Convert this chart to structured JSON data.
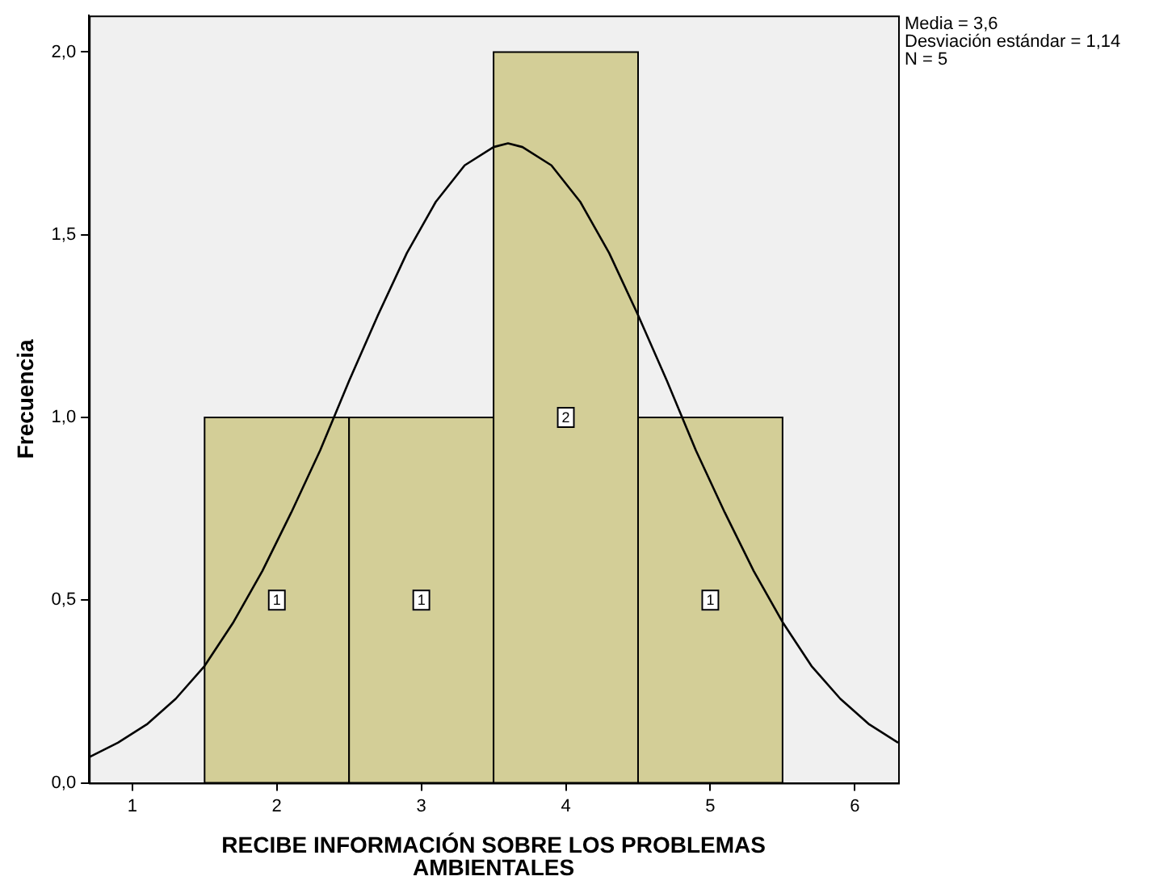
{
  "chart_data": {
    "type": "histogram",
    "xlabel": "RECIBE INFORMACIÓN SOBRE LOS PROBLEMAS AMBIENTALES",
    "ylabel": "Frecuencia",
    "annotations": [
      "Media = 3,6",
      "Desviación estándar = 1,14",
      "N = 5"
    ],
    "xlim": [
      0.7,
      6.3
    ],
    "xticks": [
      1,
      2,
      3,
      4,
      5,
      6
    ],
    "ylim": [
      0,
      2.1
    ],
    "yticks": [
      {
        "value": 0,
        "label": "0,0"
      },
      {
        "value": 0.5,
        "label": "0,5"
      },
      {
        "value": 1,
        "label": "1,0"
      },
      {
        "value": 1.5,
        "label": "1,5"
      },
      {
        "value": 2,
        "label": "2,0"
      }
    ],
    "grid": false,
    "legend": false,
    "series": [
      {
        "color": "#d3ce97",
        "bins": [
          1.5,
          2.5,
          3.5,
          4.5,
          5.5
        ],
        "values": [
          1,
          1,
          2,
          1
        ],
        "value_labels": [
          "1",
          "1",
          "2",
          "1"
        ]
      },
      {
        "type": "line",
        "color": "#000000",
        "marker": "none",
        "x": [
          0.7,
          0.9,
          1.1,
          1.3,
          1.5,
          1.7,
          1.9,
          2.1,
          2.3,
          2.5,
          2.7,
          2.9,
          3.1,
          3.3,
          3.5,
          3.6,
          3.7,
          3.9,
          4.1,
          4.3,
          4.5,
          4.7,
          4.9,
          5.1,
          5.3,
          5.5,
          5.7,
          5.9,
          6.1,
          6.3
        ],
        "values": [
          0.07,
          0.11,
          0.16,
          0.23,
          0.32,
          0.44,
          0.58,
          0.74,
          0.91,
          1.1,
          1.28,
          1.45,
          1.59,
          1.69,
          1.74,
          1.75,
          1.74,
          1.69,
          1.59,
          1.45,
          1.28,
          1.1,
          0.91,
          0.74,
          0.58,
          0.44,
          0.32,
          0.23,
          0.16,
          0.11
        ]
      }
    ]
  }
}
